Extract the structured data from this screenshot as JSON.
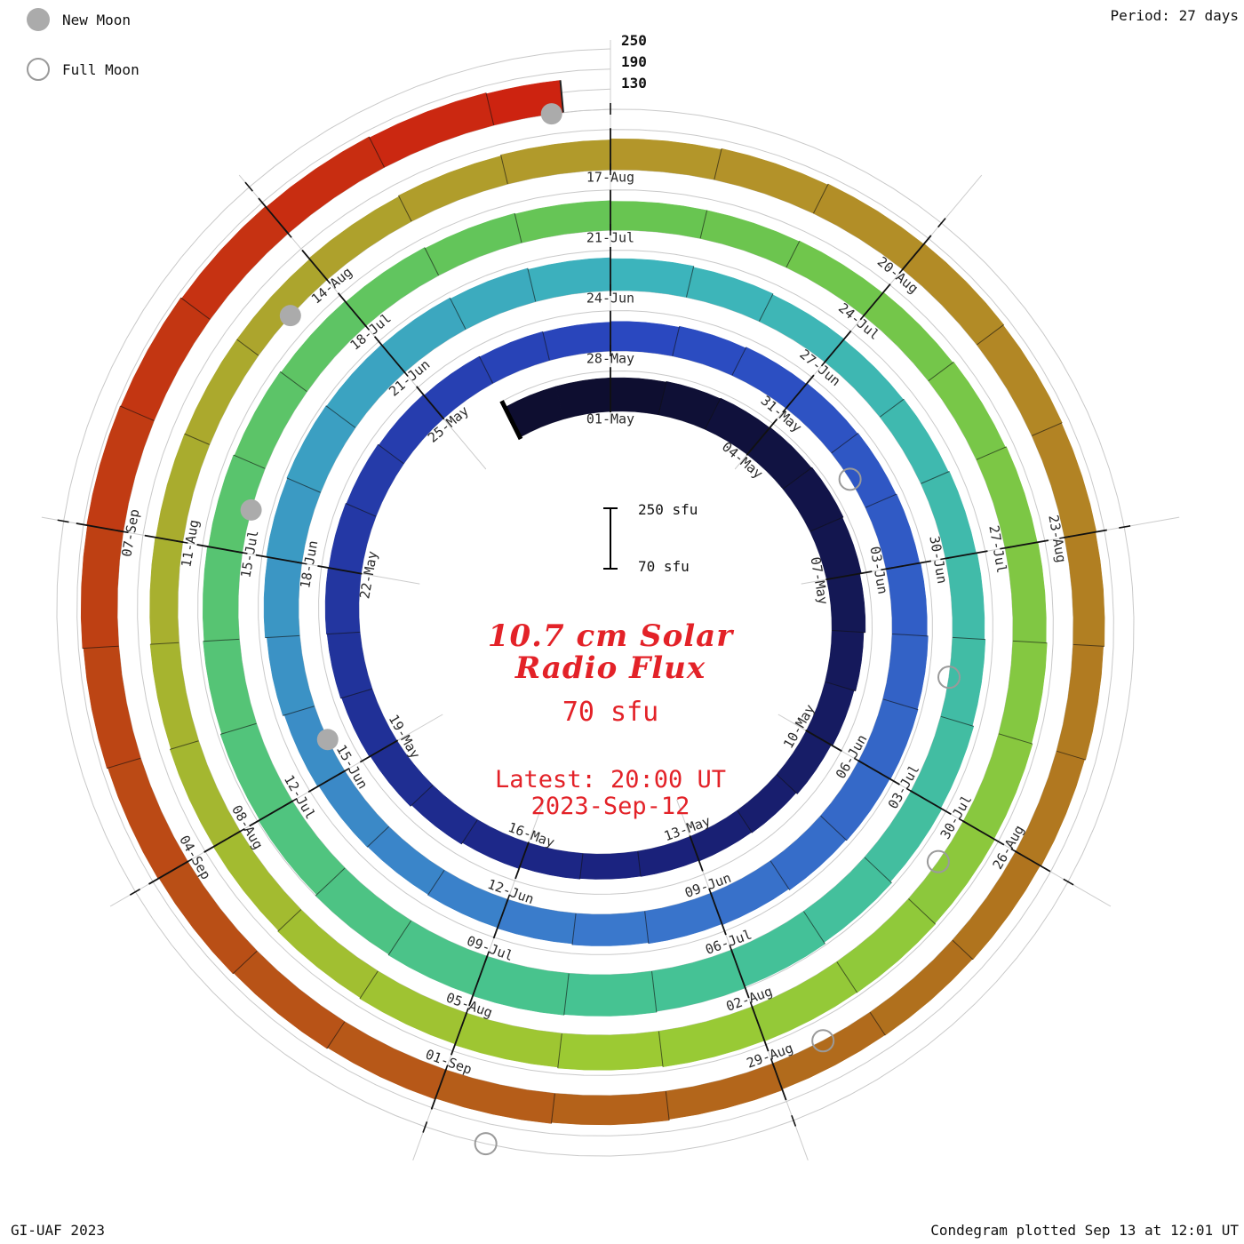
{
  "page": {
    "background": "#ffffff"
  },
  "legend": {
    "new_moon_label": "New Moon",
    "full_moon_label": "Full Moon",
    "new_moon_fill": "#ababab",
    "full_moon_outline": "#9a9a9a"
  },
  "header": {
    "period_label": "Period: 27 days"
  },
  "footer": {
    "left": "GI-UAF 2023",
    "right": "Condegram plotted Sep 13 at 12:01 UT"
  },
  "center_panel": {
    "title_line1": "10.7 cm Solar",
    "title_line2": "Radio Flux",
    "baseline_label": "70 sfu",
    "latest_line1": "Latest: 20:00 UT",
    "latest_line2": "2023-Sep-12",
    "accent_color": "#e32228"
  },
  "scale_bar": {
    "top_label": "250 sfu",
    "bottom_label": "70 sfu"
  },
  "radial_axis_labels": [
    "250",
    "190",
    "130"
  ],
  "chart_data": {
    "type": "bar",
    "variant": "polar-spiral-condegram",
    "title": "10.7 cm Solar Radio Flux",
    "units": "sfu",
    "start_date": "2023-05-01",
    "end_date": "2023-09-12",
    "period_days": 27,
    "rotation": "clockwise-from-top",
    "scale_min": 70,
    "scale_max": 250,
    "gridlines_sfu": [
      130,
      190,
      250
    ],
    "label_every_days": 3,
    "date_labels": [
      "01-May",
      "04-May",
      "07-May",
      "10-May",
      "13-May",
      "16-May",
      "19-May",
      "22-May",
      "25-May",
      "28-May",
      "31-May",
      "03-Jun",
      "06-Jun",
      "09-Jun",
      "12-Jun",
      "15-Jun",
      "18-Jun",
      "21-Jun",
      "24-Jun",
      "27-Jun",
      "30-Jun",
      "03-Jul",
      "06-Jul",
      "09-Jul",
      "12-Jul",
      "15-Jul",
      "18-Jul",
      "21-Jul",
      "24-Jul",
      "27-Jul",
      "30-Jul",
      "02-Aug",
      "05-Aug",
      "08-Aug",
      "11-Aug",
      "14-Aug",
      "17-Aug",
      "20-Aug",
      "23-Aug",
      "26-Aug",
      "29-Aug",
      "01-Sep",
      "04-Sep",
      "07-Sep"
    ],
    "daily_flux_sfu": [
      170,
      172,
      174,
      176,
      178,
      175,
      170,
      165,
      160,
      155,
      150,
      148,
      146,
      145,
      147,
      152,
      157,
      162,
      165,
      168,
      170,
      168,
      166,
      163,
      160,
      158,
      156,
      158,
      161,
      164,
      167,
      169,
      171,
      174,
      177,
      179,
      177,
      174,
      170,
      167,
      164,
      161,
      159,
      157,
      159,
      163,
      168,
      173,
      177,
      179,
      177,
      175,
      172,
      168,
      165,
      162,
      159,
      157,
      159,
      162,
      165,
      168,
      172,
      176,
      181,
      186,
      190,
      193,
      195,
      193,
      190,
      186,
      182,
      178,
      175,
      172,
      169,
      166,
      163,
      160,
      158,
      156,
      156,
      158,
      161,
      164,
      167,
      169,
      172,
      175,
      178,
      180,
      179,
      177,
      174,
      171,
      168,
      165,
      162,
      159,
      156,
      153,
      151,
      150,
      150,
      153,
      156,
      159,
      162,
      165,
      168,
      170,
      168,
      166,
      163,
      160,
      157,
      154,
      152,
      151,
      154,
      157,
      160,
      163,
      166,
      169,
      172,
      175,
      178,
      180,
      178,
      175,
      172,
      169,
      166
    ],
    "new_moon_dates": [
      "2023-05-19",
      "2023-06-18",
      "2023-07-17",
      "2023-08-16"
    ],
    "full_moon_dates": [
      "2023-05-05",
      "2023-06-04",
      "2023-07-03",
      "2023-08-01",
      "2023-08-31"
    ],
    "colormap_stops": [
      [
        0,
        "#0e0e30"
      ],
      [
        13,
        "#1b2380"
      ],
      [
        27,
        "#2a48c0"
      ],
      [
        40,
        "#3a78cc"
      ],
      [
        54,
        "#3cb4bc"
      ],
      [
        67,
        "#46c392"
      ],
      [
        81,
        "#68c551"
      ],
      [
        94,
        "#9cca33"
      ],
      [
        108,
        "#b3962a"
      ],
      [
        118,
        "#b0701d"
      ],
      [
        127,
        "#bc4514"
      ],
      [
        134,
        "#cd2310"
      ]
    ]
  }
}
